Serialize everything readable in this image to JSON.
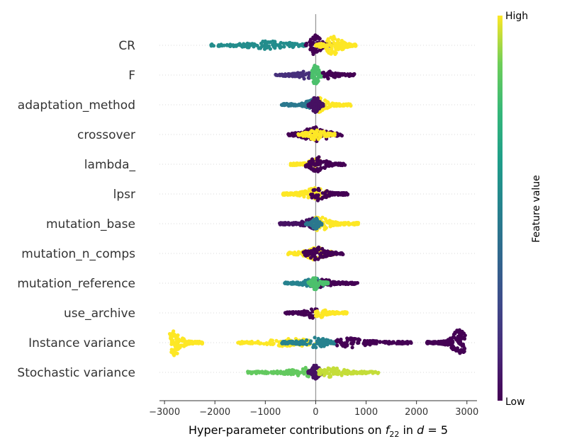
{
  "chart_data": {
    "type": "scatter",
    "subtype": "shap-beeswarm",
    "xlabel": {
      "prefix": "Hyper-parameter contributions on ",
      "var": "f",
      "sub": "22",
      "mid": " in ",
      "dvar": "d",
      "suffix": " = 5"
    },
    "xlim": [
      -3100,
      3200
    ],
    "xticks": [
      -3000,
      -2000,
      -1000,
      0,
      1000,
      2000,
      3000
    ],
    "xtick_labels": [
      "−3000",
      "−2000",
      "−1000",
      "0",
      "1000",
      "2000",
      "3000"
    ],
    "colorbar": {
      "title": "Feature value",
      "high": "High",
      "low": "Low",
      "colormap": "viridis"
    },
    "grid": false,
    "features": [
      {
        "name": "CR",
        "clusters": [
          {
            "min": -2100,
            "max": -200,
            "peak": -900,
            "color": 0.55,
            "spread": 0.35
          },
          {
            "min": -200,
            "max": 320,
            "peak": 0,
            "color": 0.0,
            "spread": 1.0
          },
          {
            "min": 0,
            "max": 800,
            "peak": 350,
            "color": 1.0,
            "spread": 0.9
          }
        ]
      },
      {
        "name": "F",
        "clusters": [
          {
            "min": -800,
            "max": -50,
            "peak": -200,
            "color": 0.15,
            "spread": 0.3
          },
          {
            "min": -80,
            "max": 130,
            "peak": 0,
            "color": 0.8,
            "spread": 1.0
          },
          {
            "min": 130,
            "max": 780,
            "peak": 250,
            "color": 0.0,
            "spread": 0.3
          }
        ]
      },
      {
        "name": "adaptation_method",
        "clusters": [
          {
            "min": -700,
            "max": 0,
            "peak": -50,
            "color": 0.45,
            "spread": 0.45
          },
          {
            "min": -50,
            "max": 700,
            "peak": 50,
            "color": 1.0,
            "spread": 0.7
          },
          {
            "min": -150,
            "max": 150,
            "peak": 0,
            "color": 0.05,
            "spread": 0.8
          }
        ]
      },
      {
        "name": "crossover",
        "clusters": [
          {
            "min": -550,
            "max": 550,
            "peak": 0,
            "color": 0.0,
            "spread": 0.7
          },
          {
            "min": -350,
            "max": 380,
            "peak": 0,
            "color": 1.0,
            "spread": 0.5
          }
        ]
      },
      {
        "name": "lambda_",
        "clusters": [
          {
            "min": -500,
            "max": 100,
            "peak": 0,
            "color": 1.0,
            "spread": 0.55
          },
          {
            "min": -200,
            "max": 580,
            "peak": 20,
            "color": 0.0,
            "spread": 0.75
          }
        ]
      },
      {
        "name": "lpsr",
        "clusters": [
          {
            "min": -650,
            "max": 300,
            "peak": 0,
            "color": 1.0,
            "spread": 0.55
          },
          {
            "min": -100,
            "max": 650,
            "peak": 50,
            "color": 0.0,
            "spread": 0.6
          }
        ]
      },
      {
        "name": "mutation_base",
        "clusters": [
          {
            "min": -720,
            "max": 50,
            "peak": -50,
            "color": 0.05,
            "spread": 0.55
          },
          {
            "min": -50,
            "max": 850,
            "peak": 80,
            "color": 1.0,
            "spread": 0.65
          },
          {
            "min": -200,
            "max": 120,
            "peak": 0,
            "color": 0.45,
            "spread": 0.5
          }
        ]
      },
      {
        "name": "mutation_n_comps",
        "clusters": [
          {
            "min": -550,
            "max": 400,
            "peak": 0,
            "color": 1.0,
            "spread": 0.6
          },
          {
            "min": -250,
            "max": 550,
            "peak": 20,
            "color": 0.0,
            "spread": 0.6
          }
        ]
      },
      {
        "name": "mutation_reference",
        "clusters": [
          {
            "min": -620,
            "max": 200,
            "peak": -30,
            "color": 0.5,
            "spread": 0.45
          },
          {
            "min": -100,
            "max": 830,
            "peak": 60,
            "color": 0.0,
            "spread": 0.5
          },
          {
            "min": -150,
            "max": 250,
            "peak": 0,
            "color": 0.8,
            "spread": 0.6
          }
        ]
      },
      {
        "name": "use_archive",
        "clusters": [
          {
            "min": -620,
            "max": 30,
            "peak": -50,
            "color": 0.0,
            "spread": 0.45
          },
          {
            "min": -30,
            "max": 620,
            "peak": 50,
            "color": 1.0,
            "spread": 0.5
          }
        ]
      },
      {
        "name": "Instance variance",
        "clusters": [
          {
            "min": -2900,
            "max": -2250,
            "peak": -2800,
            "color": 1.0,
            "spread": 1.3
          },
          {
            "min": -1550,
            "max": 350,
            "peak": -500,
            "color": 1.0,
            "spread": 0.35
          },
          {
            "min": -700,
            "max": 400,
            "peak": 0,
            "color": 0.5,
            "spread": 0.45
          },
          {
            "min": 400,
            "max": 1900,
            "peak": 700,
            "color": 0.0,
            "spread": 0.45
          },
          {
            "min": 2200,
            "max": 2970,
            "peak": 2850,
            "color": 0.0,
            "spread": 1.3
          }
        ]
      },
      {
        "name": "Stochastic variance",
        "clusters": [
          {
            "min": -1350,
            "max": -50,
            "peak": -200,
            "color": 0.85,
            "spread": 0.4
          },
          {
            "min": -150,
            "max": 150,
            "peak": 0,
            "color": 0.05,
            "spread": 0.8
          },
          {
            "min": 50,
            "max": 1250,
            "peak": 300,
            "color": 0.95,
            "spread": 0.4
          }
        ]
      }
    ]
  }
}
